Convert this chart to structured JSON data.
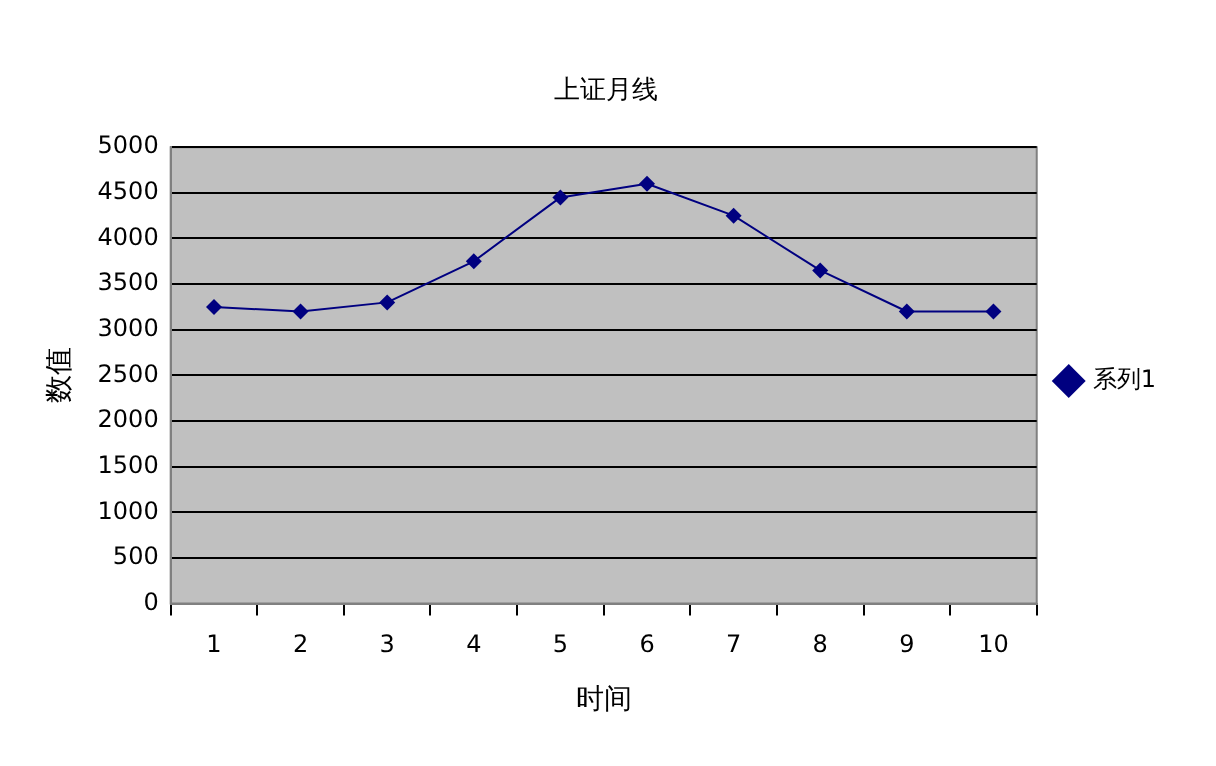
{
  "chart_data": {
    "type": "line",
    "title": "上证月线",
    "xlabel": "时间",
    "ylabel": "数值",
    "categories": [
      "1",
      "2",
      "3",
      "4",
      "5",
      "6",
      "7",
      "8",
      "9",
      "10"
    ],
    "series": [
      {
        "name": "系列1",
        "color": "#000080",
        "values": [
          3250,
          3200,
          3300,
          3750,
          4450,
          4600,
          4250,
          3650,
          3200,
          3200
        ]
      }
    ],
    "ylim": [
      0,
      5000
    ],
    "yticks": [
      0,
      500,
      1000,
      1500,
      2000,
      2500,
      3000,
      3500,
      4000,
      4500,
      5000
    ],
    "grid": "y",
    "legend": "right",
    "marker": "diamond",
    "line_style": "solid"
  }
}
